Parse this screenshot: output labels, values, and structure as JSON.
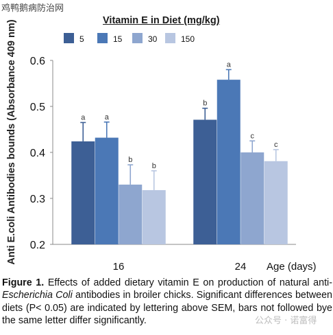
{
  "watermark_top": "鸡鸭鹅病防治网",
  "watermark_bottom": "公众号 · 诺富得",
  "chart_data": {
    "type": "bar",
    "title": "Vitamin E in Diet (mg/kg)",
    "ylabel": "Anti E.coli Antibodies bounds (Absorbance 409 nm)",
    "xlabel": "Age (days)",
    "categories": [
      "16",
      "24"
    ],
    "ylim": [
      0.2,
      0.6
    ],
    "yticks": [
      "0.2",
      "0.3",
      "0.4",
      "0.5",
      "0.6"
    ],
    "grid": false,
    "legend_position": "top",
    "series": [
      {
        "name": "5",
        "color": "#3d5f95",
        "values": [
          0.424,
          0.471
        ],
        "errors": [
          0.041,
          0.025
        ],
        "letters": [
          "a",
          "b"
        ]
      },
      {
        "name": "15",
        "color": "#4b78b6",
        "values": [
          0.432,
          0.558
        ],
        "errors": [
          0.034,
          0.022
        ],
        "letters": [
          "a",
          "a"
        ]
      },
      {
        "name": "30",
        "color": "#8ea6cf",
        "values": [
          0.33,
          0.4
        ],
        "errors": [
          0.043,
          0.025
        ],
        "letters": [
          "b",
          "c"
        ]
      },
      {
        "name": "150",
        "color": "#b8c6e1",
        "values": [
          0.318,
          0.381
        ],
        "errors": [
          0.042,
          0.025
        ],
        "letters": [
          "b",
          "c"
        ]
      }
    ]
  },
  "caption": {
    "lead": "Figure 1.",
    "text_1": " Effects of added dietary vitamin E on production of natural anti-",
    "italic": "Escherichia Coli",
    "text_2": " antibodies in broiler chicks. Significant differences between diets (P< 0.05) are indicated by lettering above SEM, bars not followed bye the same letter differ significantly."
  }
}
